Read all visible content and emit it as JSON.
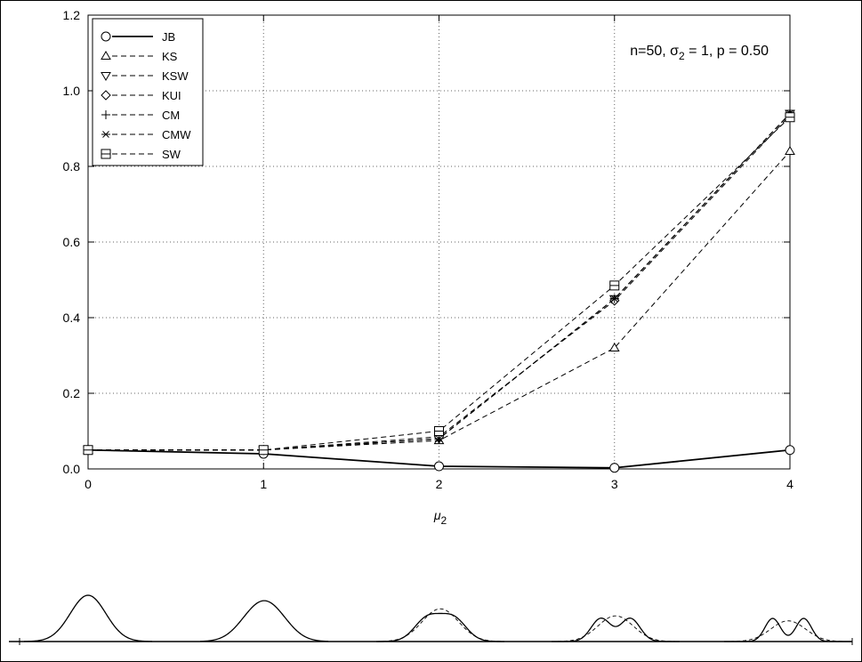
{
  "chart_data": {
    "type": "line",
    "annotation": {
      "pre": "n=50, σ",
      "sub": "2",
      "post": " = 1, p = 0.50"
    },
    "xlabel": {
      "main": "μ",
      "sub": "2"
    },
    "ylabel": "",
    "x": [
      0,
      1,
      2,
      3,
      4
    ],
    "xlim": [
      0,
      4
    ],
    "ylim": [
      0,
      1.2
    ],
    "xticks": [
      "0",
      "1",
      "2",
      "3",
      "4"
    ],
    "yticks": [
      "0.0",
      "0.2",
      "0.4",
      "0.6",
      "0.8",
      "1.0",
      "1.2"
    ],
    "grid": true,
    "legend_position": "top-left",
    "series": [
      {
        "name": "JB",
        "marker": "circle",
        "style": "solid",
        "values": [
          0.05,
          0.04,
          0.007,
          0.003,
          0.05
        ]
      },
      {
        "name": "KS",
        "marker": "triangle-up",
        "style": "dashed",
        "values": [
          0.05,
          0.05,
          0.075,
          0.32,
          0.84
        ]
      },
      {
        "name": "KSW",
        "marker": "triangle-down",
        "style": "dashed",
        "values": [
          0.05,
          0.05,
          0.08,
          0.45,
          0.94
        ]
      },
      {
        "name": "KUI",
        "marker": "diamond",
        "style": "dashed",
        "values": [
          0.05,
          0.05,
          0.085,
          0.445,
          0.935
        ]
      },
      {
        "name": "CM",
        "marker": "plus",
        "style": "dashed",
        "values": [
          0.05,
          0.05,
          0.08,
          0.45,
          0.94
        ]
      },
      {
        "name": "CMW",
        "marker": "star",
        "style": "dashed",
        "values": [
          0.05,
          0.05,
          0.08,
          0.45,
          0.94
        ]
      },
      {
        "name": "SW",
        "marker": "square-cross",
        "style": "dashed",
        "values": [
          0.05,
          0.05,
          0.1,
          0.485,
          0.93
        ]
      }
    ],
    "density_panels": {
      "mu2": [
        0,
        1,
        2,
        3,
        4
      ],
      "mu1": 0,
      "sigma1": 1,
      "sigma2": 1,
      "p": 0.5
    }
  }
}
